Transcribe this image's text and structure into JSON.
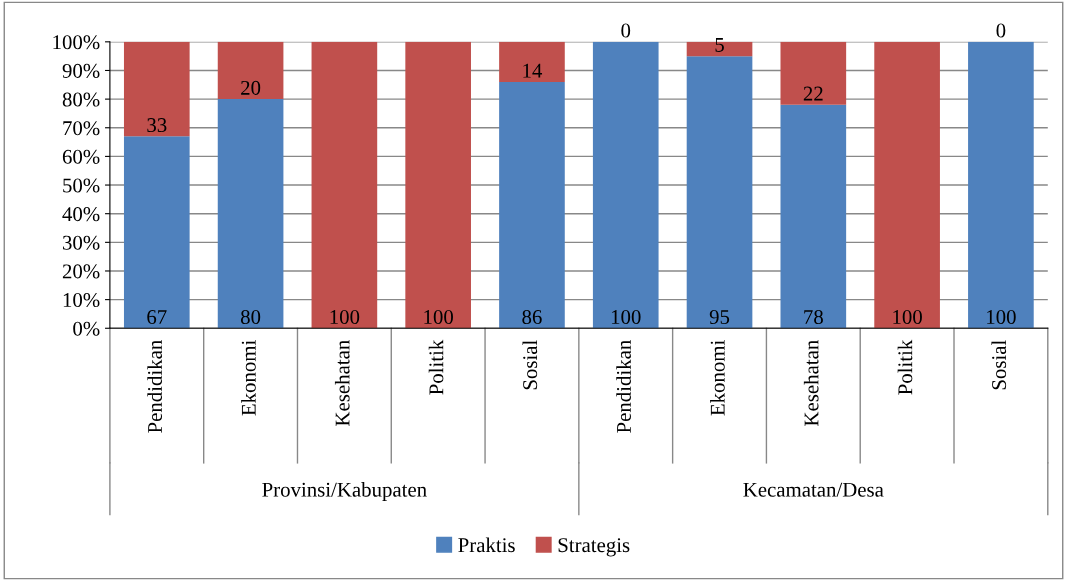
{
  "chart_data": {
    "type": "bar",
    "stacked": true,
    "categories": [
      "Pendidikan",
      "Ekonomi",
      "Kesehatan",
      "Politik",
      "Sosial",
      "Pendidikan",
      "Ekonomi",
      "Kesehatan",
      "Politik",
      "Sosial"
    ],
    "series": [
      {
        "name": "Praktis",
        "color": "#4f81bd",
        "values": [
          67,
          80,
          0,
          0,
          86,
          100,
          95,
          78,
          0,
          100
        ],
        "value_labels": [
          "67",
          "80",
          null,
          null,
          "86",
          "100",
          "95",
          "78",
          null,
          "100"
        ]
      },
      {
        "name": "Strategis",
        "color": "#c0504d",
        "values": [
          33,
          20,
          100,
          100,
          14,
          0,
          5,
          22,
          100,
          0
        ],
        "value_labels": [
          "33",
          "20",
          "100",
          "100",
          "14",
          "0",
          "5",
          "22",
          "100",
          "0"
        ]
      }
    ],
    "annotations": [
      "Provinsi/Kabupaten",
      "Kecamatan/Desa"
    ],
    "ylim": [
      0,
      100
    ],
    "yticks": [
      {
        "value": 0,
        "label": "0%"
      },
      {
        "value": 10,
        "label": "10%"
      },
      {
        "value": 20,
        "label": "20%"
      },
      {
        "value": 30,
        "label": "30%"
      },
      {
        "value": 40,
        "label": "40%"
      },
      {
        "value": 50,
        "label": "50%"
      },
      {
        "value": 60,
        "label": "60%"
      },
      {
        "value": 70,
        "label": "70%"
      },
      {
        "value": 80,
        "label": "80%"
      },
      {
        "value": 90,
        "label": "90%"
      },
      {
        "value": 100,
        "label": "100%"
      }
    ],
    "grid": "y",
    "legend": "bottom"
  }
}
